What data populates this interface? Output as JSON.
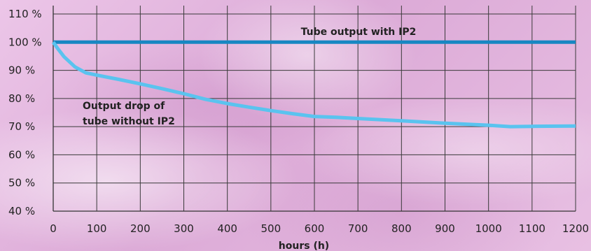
{
  "chart_data": {
    "type": "line",
    "xlabel": "hours (h)",
    "ylabel": "",
    "xlim": [
      0,
      1200
    ],
    "ylim": [
      40,
      110
    ],
    "x_ticks": [
      "0",
      "100",
      "200",
      "300",
      "400",
      "500",
      "600",
      "700",
      "800",
      "900",
      "1000",
      "1100",
      "1200"
    ],
    "y_ticks": [
      "40 %",
      "50 %",
      "60 %",
      "70 %",
      "80 %",
      "90 %",
      "100 %",
      "110 %"
    ],
    "grid": true,
    "series": [
      {
        "name": "Tube output with IP2",
        "color": "#1787c2",
        "x": [
          0,
          1200
        ],
        "y": [
          100,
          100
        ]
      },
      {
        "name": "Output drop of tube without IP2",
        "color": "#5ac3ef",
        "x": [
          0,
          10,
          25,
          50,
          75,
          100,
          150,
          200,
          250,
          300,
          350,
          400,
          450,
          500,
          550,
          600,
          650,
          700,
          800,
          900,
          1000,
          1050,
          1100,
          1200
        ],
        "y": [
          100,
          97.8,
          94.8,
          91.2,
          89.1,
          88.3,
          86.8,
          85.2,
          83.5,
          81.7,
          79.7,
          78.2,
          76.9,
          75.7,
          74.6,
          73.6,
          73.3,
          72.9,
          72.1,
          71.2,
          70.5,
          70.0,
          70.1,
          70.2
        ]
      }
    ],
    "annotations": [
      {
        "text": "Tube output with IP2"
      },
      {
        "text": "Output drop of"
      },
      {
        "text": "tube without IP2"
      }
    ]
  }
}
